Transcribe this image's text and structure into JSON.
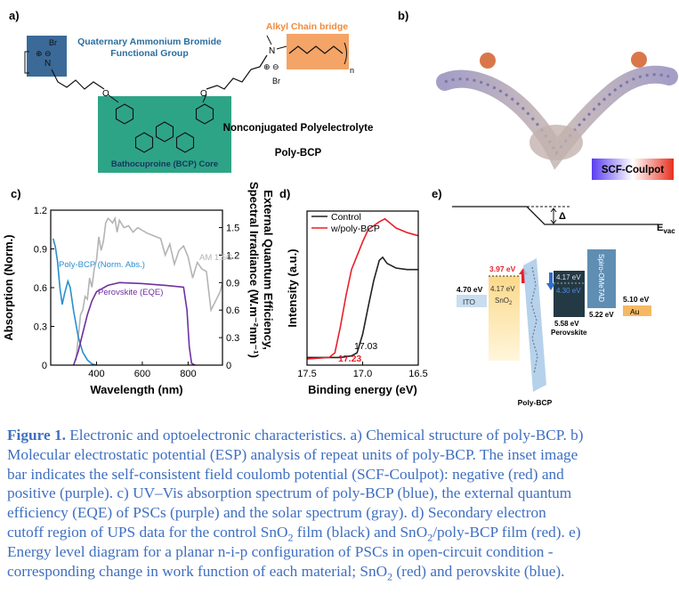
{
  "panels": {
    "a": {
      "label": "a)",
      "group_label": [
        "Quaternary Ammonium Bromide",
        "Functional Group"
      ],
      "bridge_label": "Alkyl Chain bridge",
      "core_label": "Bathocuproine (BCP) Core",
      "class_label": "Nonconjugated Polyelectrolyte",
      "name": "Poly-BCP",
      "atoms": {
        "br1": "Br",
        "n1": "N",
        "o1": "O",
        "o2": "O",
        "n2": "N",
        "br2": "Br",
        "repeat": "n"
      },
      "charges": [
        "⊕ ⊖",
        "⊕ ⊖"
      ]
    },
    "b": {
      "label": "b)",
      "colorbar_label": "SCF-Coulpot"
    },
    "e": {
      "label": "e)",
      "evac": {
        "main": "E",
        "sub": "vac"
      },
      "delta": "Δ",
      "ito": {
        "level": "4.70 eV",
        "name": "ITO"
      },
      "sno2": {
        "shift": "3.97 eV",
        "level": "4.17 eV",
        "name": "SnO",
        "sub": "2"
      },
      "perovskite": {
        "level1": "4.17 eV",
        "level2": "4.30 eV",
        "level3": "5.58 eV",
        "name": "Perovskite"
      },
      "spiro": {
        "name": "Spiro-OMeTAD",
        "level": "5.22 eV"
      },
      "au": {
        "level": "5.10 eV",
        "name": "Au"
      },
      "interlayer": "Poly-BCP"
    }
  },
  "chart_data": [
    {
      "type": "line",
      "panel_label": "c)",
      "x_label": "Wavelength (nm)",
      "y_label": "Absorption (Norm.)",
      "y2_label": [
        "External Quantum Efficiency,",
        "Spectral Irradiance (W.m⁻²nm⁻¹)"
      ],
      "xlim": [
        200,
        950
      ],
      "xticks": [
        400,
        600,
        800
      ],
      "ylim": [
        0,
        1.2
      ],
      "yticks": [
        0,
        0.3,
        0.6,
        0.9,
        1.2
      ],
      "y2lim": [
        0,
        1.69
      ],
      "y2ticks": [
        0,
        0.3,
        0.6,
        0.9,
        1.2,
        1.5
      ],
      "series": [
        {
          "name": "AM 1.5G",
          "color": "#b4b4b4",
          "axis": "y2",
          "x": [
            310,
            320,
            330,
            340,
            350,
            360,
            370,
            380,
            390,
            400,
            410,
            420,
            430,
            440,
            450,
            460,
            470,
            480,
            490,
            500,
            520,
            540,
            560,
            580,
            600,
            620,
            640,
            660,
            680,
            700,
            720,
            740,
            760,
            780,
            800,
            820,
            840,
            860,
            880,
            900,
            920,
            940,
            950
          ],
          "values": [
            0.05,
            0.3,
            0.55,
            0.6,
            0.75,
            0.72,
            0.95,
            0.85,
            1.05,
            1.15,
            1.4,
            1.25,
            1.35,
            1.55,
            1.6,
            1.58,
            1.55,
            1.6,
            1.45,
            1.58,
            1.5,
            1.52,
            1.45,
            1.5,
            1.47,
            1.44,
            1.42,
            1.4,
            1.38,
            1.2,
            1.32,
            1.1,
            1.25,
            1.3,
            1.18,
            0.95,
            1.12,
            1.05,
            1.02,
            0.6,
            0.7,
            0.8,
            0.9
          ]
        },
        {
          "name": "Poly-BCP (Norm. Abs.)",
          "color": "#2a8fd0",
          "x": [
            210,
            220,
            230,
            240,
            250,
            260,
            275,
            285,
            300,
            320,
            340,
            360,
            380,
            400
          ],
          "values": [
            0.98,
            0.92,
            0.8,
            0.6,
            0.47,
            0.55,
            0.65,
            0.6,
            0.42,
            0.22,
            0.1,
            0.04,
            0.01,
            0
          ]
        },
        {
          "name": "Perovskite (EQE)",
          "color": "#7030a0",
          "axis": "y2",
          "x": [
            300,
            320,
            340,
            360,
            380,
            400,
            450,
            500,
            600,
            700,
            780,
            795,
            805,
            815,
            830
          ],
          "values": [
            0,
            0.15,
            0.35,
            0.55,
            0.7,
            0.8,
            0.87,
            0.9,
            0.89,
            0.87,
            0.85,
            0.6,
            0.2,
            0.02,
            0
          ]
        }
      ]
    },
    {
      "type": "line",
      "panel_label": "d)",
      "x_label": "Binding energy (eV)",
      "y_label": "Intensity (a.u.)",
      "xlim": [
        17.5,
        16.5
      ],
      "xticks": [
        17.5,
        {
          "value": 17,
          "label": "17.0"
        },
        16.5
      ],
      "ylim": [
        0,
        1
      ],
      "legend": "upper left",
      "annotations": [
        {
          "text": "17.03",
          "color": "#000000"
        },
        {
          "text": "17.23",
          "color": "#e8202a"
        }
      ],
      "series": [
        {
          "name": "Control",
          "color": "#222222",
          "x": [
            17.5,
            17.2,
            17.1,
            17.05,
            17.0,
            16.95,
            16.9,
            16.85,
            16.82,
            16.78,
            16.7,
            16.6,
            16.5
          ],
          "values": [
            0.05,
            0.05,
            0.06,
            0.08,
            0.2,
            0.38,
            0.55,
            0.68,
            0.7,
            0.66,
            0.63,
            0.62,
            0.62
          ]
        },
        {
          "name": "w/poly-BCP",
          "color": "#e8202a",
          "x": [
            17.5,
            17.3,
            17.25,
            17.2,
            17.15,
            17.1,
            17.0,
            16.95,
            16.85,
            16.8,
            16.7,
            16.6,
            16.5
          ],
          "values": [
            0.04,
            0.05,
            0.08,
            0.25,
            0.45,
            0.62,
            0.8,
            0.88,
            0.93,
            0.95,
            0.89,
            0.86,
            0.84
          ]
        }
      ]
    }
  ],
  "caption": {
    "lines": [
      [
        {
          "text": "Figure 1.",
          "style": "bold"
        },
        " Electronic and optoelectronic characteristics. a) Chemical structure of poly-BCP. b)"
      ],
      [
        "Molecular electrostatic potential (ESP) analysis of repeat units of poly-BCP. The inset image"
      ],
      [
        "bar indicates the self-consistent field coulomb potential (SCF-Coulpot): negative (red) and"
      ],
      [
        "positive (purple). c) UV–Vis absorption spectrum of poly-BCP (blue), the external quantum"
      ],
      [
        "efficiency (EQE) of PSCs (purple) and the solar spectrum (gray). d) Secondary electron"
      ],
      [
        "cutoff region of UPS data for the control SnO",
        {
          "text": "2",
          "style": "sub"
        },
        " film (black) and SnO",
        {
          "text": "2",
          "style": "sub"
        },
        "/poly-BCP film (red). e)"
      ],
      [
        "Energy level diagram for a planar n-i-p configuration of PSCs in open-circuit condition -"
      ],
      [
        "corresponding change in work function of each material; SnO",
        {
          "text": "2",
          "style": "sub"
        },
        " (red) and perovskite (blue)."
      ]
    ]
  }
}
